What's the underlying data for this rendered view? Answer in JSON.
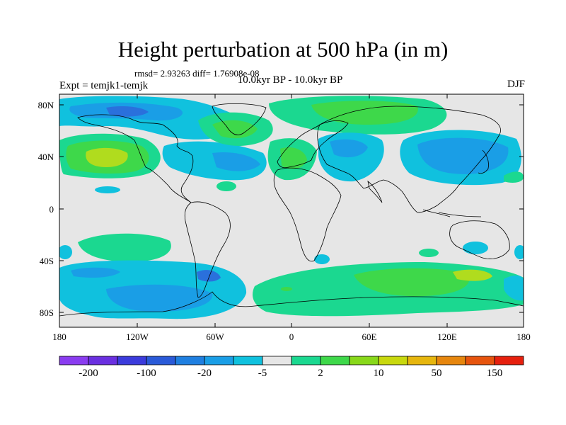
{
  "title": "Height perturbation at 500 hPa (in m)",
  "stats": "rmsd= 2.93263 diff= 1.76908e-08",
  "subtitle": "10.0kyr BP - 10.0kyr BP",
  "experiment": "Expt = temjk1-temjk",
  "season": "DJF",
  "lat_labels": [
    "80N",
    "40N",
    "0",
    "40S",
    "80S"
  ],
  "lon_labels": [
    "180",
    "120W",
    "60W",
    "0",
    "60E",
    "120E",
    "180"
  ],
  "colorbar": {
    "labels": [
      "-200",
      "-100",
      "-20",
      "-5",
      "2",
      "10",
      "50",
      "150"
    ],
    "colors": [
      "#8a3cf0",
      "#6a2fe0",
      "#3b3bdc",
      "#2a5ad8",
      "#1f7fe0",
      "#1a9ee6",
      "#10c1de",
      "#e6e6e6",
      "#1bd890",
      "#3ed84a",
      "#88d81a",
      "#c8d80e",
      "#e6b60e",
      "#e6860e",
      "#e6540e",
      "#e6200e"
    ]
  },
  "map_colors": {
    "background": "#e6e6e6",
    "light_blue": "#10c1de",
    "mid_blue": "#1a9ee6",
    "dark_blue": "#2a70dc",
    "mint": "#1bd890",
    "green": "#3ed84a",
    "lime": "#b0dc1e",
    "coast": "#000000"
  }
}
